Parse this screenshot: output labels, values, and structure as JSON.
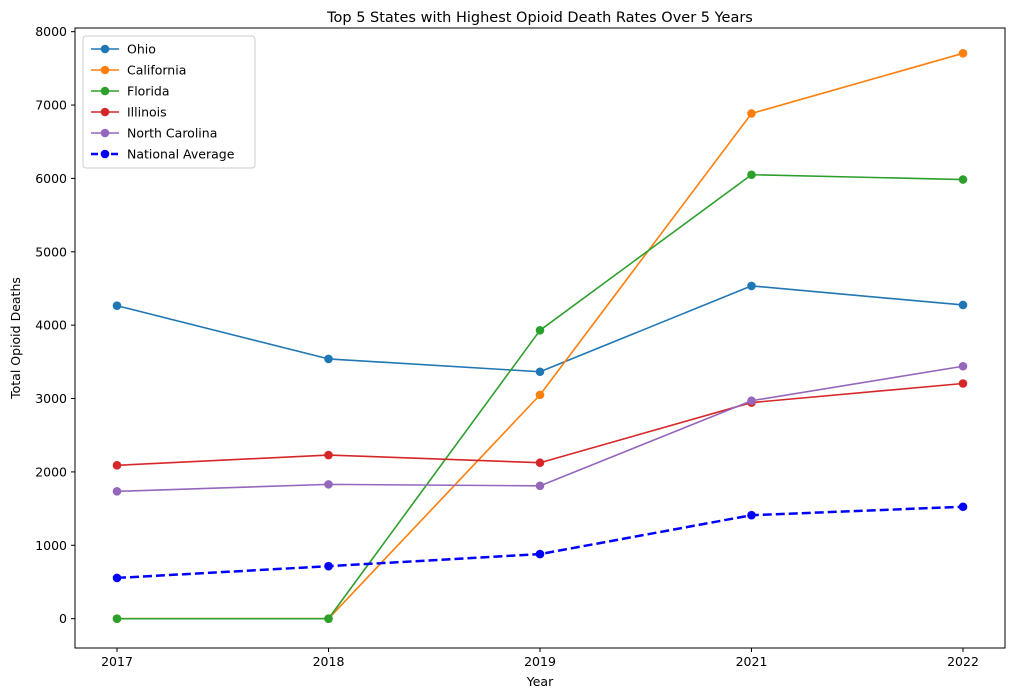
{
  "chart_data": {
    "type": "line",
    "title": "Top 5 States with Highest Opioid Death Rates Over 5 Years",
    "xlabel": "Year",
    "ylabel": "Total Opioid Deaths",
    "categories": [
      "2017",
      "2018",
      "2019",
      "2021",
      "2022"
    ],
    "ylim": [
      -400,
      8050
    ],
    "yticks": [
      0,
      1000,
      2000,
      3000,
      4000,
      5000,
      6000,
      7000,
      8000
    ],
    "grid": false,
    "legend_position": "top-left",
    "series": [
      {
        "name": "Ohio",
        "color": "#1f77b4",
        "style": "solid",
        "values": [
          4265,
          3540,
          3365,
          4535,
          4275
        ]
      },
      {
        "name": "California",
        "color": "#ff7f0e",
        "style": "solid",
        "values": [
          0,
          0,
          3050,
          6885,
          7705
        ]
      },
      {
        "name": "Florida",
        "color": "#2ca02c",
        "style": "solid",
        "values": [
          0,
          0,
          3930,
          6050,
          5985
        ]
      },
      {
        "name": "Illinois",
        "color": "#d62728",
        "style": "solid",
        "values": [
          2090,
          2230,
          2125,
          2945,
          3205
        ]
      },
      {
        "name": "North Carolina",
        "color": "#9467bd",
        "style": "solid",
        "values": [
          1735,
          1830,
          1810,
          2970,
          3440
        ]
      },
      {
        "name": "National Average",
        "color": "#0000ff",
        "style": "dashed",
        "values": [
          555,
          715,
          880,
          1410,
          1525
        ]
      }
    ]
  }
}
